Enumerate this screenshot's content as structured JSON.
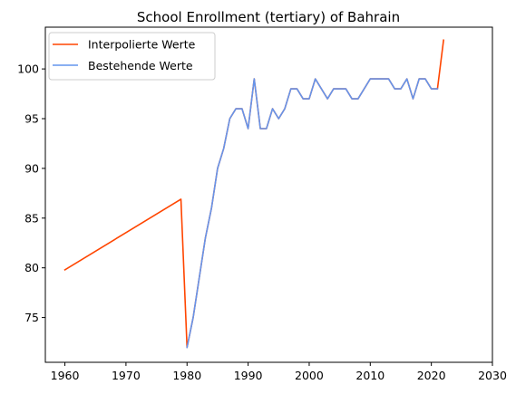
{
  "chart_data": {
    "type": "line",
    "title": "School Enrollment (tertiary) of Bahrain",
    "xlabel": "",
    "ylabel": "",
    "xlim": [
      1956.8,
      2030
    ],
    "ylim": [
      70.5,
      104.2
    ],
    "x_ticks": [
      1960,
      1970,
      1980,
      1990,
      2000,
      2010,
      2020,
      2030
    ],
    "y_ticks": [
      75,
      80,
      85,
      90,
      95,
      100
    ],
    "grid": false,
    "legend_position": "top-left",
    "series": [
      {
        "name": "Interpolierte Werte",
        "color": "#ff4500",
        "x": [
          1960,
          1979,
          1980,
          1981,
          1982,
          1983,
          1984,
          1985,
          1986,
          1987,
          1988,
          1989,
          1990,
          1991,
          1992,
          1993,
          1994,
          1995,
          1996,
          1997,
          1998,
          1999,
          2000,
          2001,
          2002,
          2003,
          2004,
          2005,
          2006,
          2007,
          2008,
          2009,
          2010,
          2011,
          2012,
          2013,
          2014,
          2015,
          2016,
          2017,
          2018,
          2019,
          2020,
          2021,
          2022
        ],
        "y": [
          79.8,
          86.9,
          72,
          75,
          79,
          83,
          86,
          90,
          92,
          95,
          96,
          96,
          94,
          99,
          94,
          94,
          96,
          95,
          96,
          98,
          98,
          97,
          97,
          99,
          98,
          97,
          98,
          98,
          98,
          97,
          97,
          98,
          99,
          99,
          99,
          99,
          98,
          98,
          99,
          97,
          99,
          99,
          98,
          98,
          102.9
        ]
      },
      {
        "name": "Bestehende Werte",
        "color": "#6495ed",
        "x": [
          1980,
          1981,
          1982,
          1983,
          1984,
          1985,
          1986,
          1987,
          1988,
          1989,
          1990,
          1991,
          1992,
          1993,
          1994,
          1995,
          1996,
          1997,
          1998,
          1999,
          2000,
          2001,
          2002,
          2003,
          2004,
          2005,
          2006,
          2007,
          2008,
          2009,
          2010,
          2011,
          2012,
          2013,
          2014,
          2015,
          2016,
          2017,
          2018,
          2019,
          2020,
          2021
        ],
        "y": [
          72,
          75,
          79,
          83,
          86,
          90,
          92,
          95,
          96,
          96,
          94,
          99,
          94,
          94,
          96,
          95,
          96,
          98,
          98,
          97,
          97,
          99,
          98,
          97,
          98,
          98,
          98,
          97,
          97,
          98,
          99,
          99,
          99,
          99,
          98,
          98,
          99,
          97,
          99,
          99,
          98,
          98
        ]
      }
    ]
  }
}
